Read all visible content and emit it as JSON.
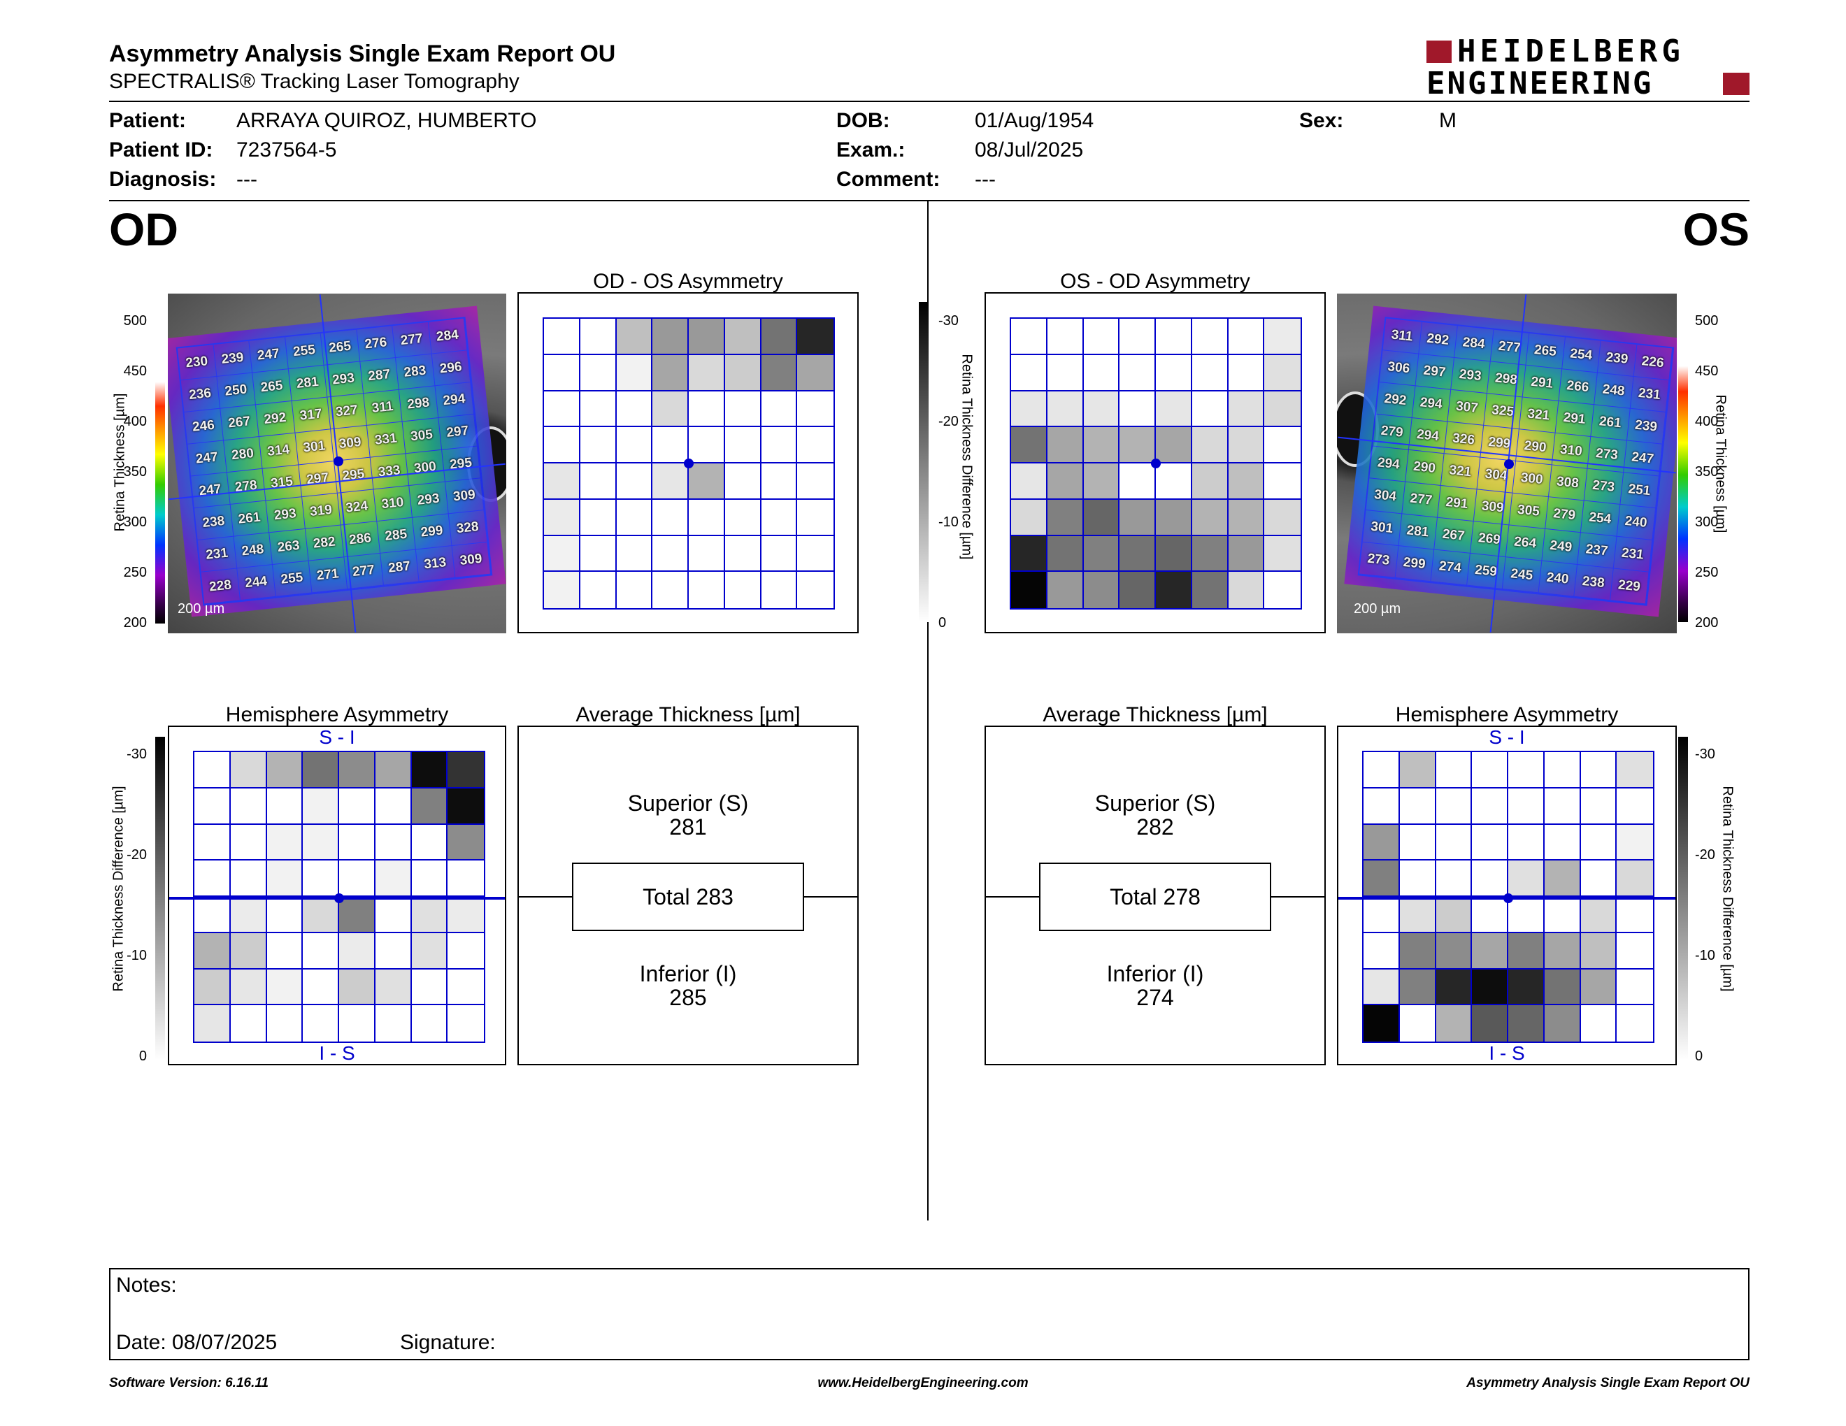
{
  "header": {
    "title": "Asymmetry Analysis Single Exam Report OU",
    "subtitle": "SPECTRALIS® Tracking Laser Tomography",
    "logo_line1": "HEIDELBERG",
    "logo_line2": "ENGINEERING"
  },
  "patient": {
    "patient_label": "Patient:",
    "patient_value": "ARRAYA QUIROZ, HUMBERTO",
    "id_label": "Patient ID:",
    "id_value": "7237564-5",
    "diagnosis_label": "Diagnosis:",
    "diagnosis_value": "---",
    "dob_label": "DOB:",
    "dob_value": "01/Aug/1954",
    "exam_label": "Exam.:",
    "exam_value": "08/Jul/2025",
    "comment_label": "Comment:",
    "comment_value": "---",
    "sex_label": "Sex:",
    "sex_value": "M"
  },
  "od": {
    "eye_label": "OD",
    "asym_title": "OD - OS Asymmetry",
    "hemi_title": "Hemisphere Asymmetry",
    "hemi_top": "S - I",
    "hemi_bottom": "I - S",
    "avg_title": "Average Thickness [µm]",
    "superior_label": "Superior (S)",
    "superior_value": "281",
    "total_label": "Total 283",
    "inferior_label": "Inferior (I)",
    "inferior_value": "285",
    "scale_label": "200 µm",
    "thickness": [
      [
        230,
        239,
        247,
        255,
        265,
        276,
        277,
        284
      ],
      [
        236,
        250,
        265,
        281,
        293,
        287,
        283,
        296
      ],
      [
        246,
        267,
        292,
        317,
        327,
        311,
        298,
        294
      ],
      [
        247,
        280,
        314,
        301,
        309,
        331,
        305,
        297
      ],
      [
        247,
        278,
        315,
        297,
        295,
        333,
        300,
        295
      ],
      [
        238,
        261,
        293,
        319,
        324,
        310,
        293,
        309
      ],
      [
        231,
        248,
        263,
        282,
        286,
        285,
        299,
        328
      ],
      [
        228,
        244,
        255,
        271,
        277,
        287,
        313,
        309
      ]
    ],
    "asym_gray": [
      [
        0,
        0,
        0.25,
        0.4,
        0.4,
        0.25,
        0.55,
        0.85
      ],
      [
        0,
        0,
        0.05,
        0.35,
        0.15,
        0.2,
        0.5,
        0.35
      ],
      [
        0,
        0,
        0,
        0.15,
        0,
        0,
        0,
        0
      ],
      [
        0,
        0,
        0,
        0,
        0,
        0,
        0,
        0
      ],
      [
        0.1,
        0,
        0,
        0.1,
        0.3,
        0,
        0,
        0
      ],
      [
        0.08,
        0,
        0,
        0,
        0,
        0,
        0,
        0
      ],
      [
        0.05,
        0,
        0,
        0,
        0,
        0,
        0,
        0
      ],
      [
        0.05,
        0,
        0,
        0,
        0,
        0,
        0,
        0
      ]
    ],
    "hemi_gray": [
      [
        0,
        0.15,
        0.3,
        0.55,
        0.45,
        0.35,
        0.95,
        0.8
      ],
      [
        0,
        0,
        0,
        0.05,
        0,
        0,
        0.5,
        0.95
      ],
      [
        0,
        0,
        0.05,
        0.05,
        0,
        0,
        0,
        0.45
      ],
      [
        0,
        0,
        0.05,
        0,
        0,
        0.05,
        0,
        0
      ],
      [
        0,
        0.08,
        0,
        0.15,
        0.5,
        0,
        0.12,
        0.08
      ],
      [
        0.3,
        0.2,
        0,
        0,
        0.08,
        0,
        0.12,
        0
      ],
      [
        0.2,
        0.1,
        0.05,
        0,
        0.2,
        0.12,
        0,
        0
      ],
      [
        0.1,
        0,
        0,
        0,
        0,
        0,
        0,
        0
      ]
    ]
  },
  "os": {
    "eye_label": "OS",
    "asym_title": "OS - OD Asymmetry",
    "hemi_title": "Hemisphere Asymmetry",
    "hemi_top": "S - I",
    "hemi_bottom": "I - S",
    "avg_title": "Average Thickness [µm]",
    "superior_label": "Superior (S)",
    "superior_value": "282",
    "total_label": "Total 278",
    "inferior_label": "Inferior (I)",
    "inferior_value": "274",
    "scale_label": "200 µm",
    "thickness": [
      [
        311,
        292,
        284,
        277,
        265,
        254,
        239,
        226
      ],
      [
        306,
        297,
        293,
        298,
        291,
        266,
        248,
        231
      ],
      [
        292,
        294,
        307,
        325,
        321,
        291,
        261,
        239
      ],
      [
        279,
        294,
        326,
        299,
        290,
        310,
        273,
        247
      ],
      [
        294,
        290,
        321,
        304,
        300,
        308,
        273,
        251
      ],
      [
        304,
        277,
        291,
        309,
        305,
        279,
        254,
        240
      ],
      [
        301,
        281,
        267,
        269,
        264,
        249,
        237,
        231
      ],
      [
        273,
        299,
        274,
        259,
        245,
        240,
        238,
        229
      ]
    ],
    "asym_gray": [
      [
        0,
        0,
        0,
        0,
        0,
        0,
        0,
        0.08
      ],
      [
        0,
        0,
        0,
        0,
        0,
        0,
        0,
        0.12
      ],
      [
        0.1,
        0.1,
        0.1,
        0,
        0.1,
        0,
        0.12,
        0.15
      ],
      [
        0.55,
        0.35,
        0.3,
        0.3,
        0.35,
        0.15,
        0.15,
        0
      ],
      [
        0.1,
        0.35,
        0.3,
        0,
        0,
        0.2,
        0.25,
        0
      ],
      [
        0.15,
        0.5,
        0.6,
        0.4,
        0.4,
        0.3,
        0.3,
        0.15
      ],
      [
        0.85,
        0.55,
        0.5,
        0.55,
        0.6,
        0.5,
        0.4,
        0.12
      ],
      [
        0.98,
        0.4,
        0.45,
        0.6,
        0.85,
        0.55,
        0.15,
        0
      ]
    ],
    "hemi_gray": [
      [
        0,
        0.25,
        0,
        0,
        0,
        0,
        0,
        0.12
      ],
      [
        0,
        0,
        0,
        0,
        0,
        0,
        0,
        0
      ],
      [
        0.4,
        0,
        0,
        0,
        0,
        0,
        0,
        0.05
      ],
      [
        0.5,
        0,
        0,
        0,
        0.12,
        0.3,
        0,
        0.15
      ],
      [
        0,
        0.12,
        0.2,
        0,
        0,
        0,
        0.15,
        0
      ],
      [
        0,
        0.5,
        0.45,
        0.35,
        0.5,
        0.35,
        0.25,
        0
      ],
      [
        0.1,
        0.5,
        0.85,
        0.95,
        0.85,
        0.55,
        0.35,
        0
      ],
      [
        0.98,
        0,
        0.3,
        0.65,
        0.6,
        0.45,
        0,
        0
      ]
    ]
  },
  "scales": {
    "thickness_label": "Retina Thickness [µm]",
    "thickness_ticks": [
      "500",
      "450",
      "400",
      "350",
      "300",
      "250",
      "200"
    ],
    "diff_label": "Retina Thickness Difference [µm]",
    "diff_ticks": [
      "-30",
      "-20",
      "-10",
      "0"
    ]
  },
  "notes": {
    "notes_label": "Notes:",
    "date_label": "Date: 08/07/2025",
    "signature_label": "Signature:"
  },
  "footer": {
    "version": "Software Version: 6.16.11",
    "url": "www.HeidelbergEngineering.com",
    "report": "Asymmetry Analysis Single Exam Report OU"
  }
}
